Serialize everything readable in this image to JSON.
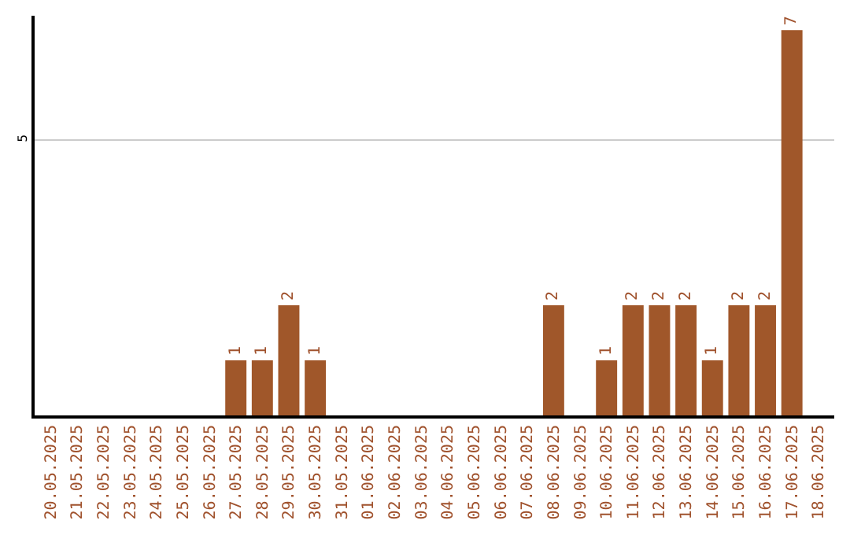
{
  "chart_data": {
    "type": "bar",
    "categories": [
      "20.05.2025",
      "21.05.2025",
      "22.05.2025",
      "23.05.2025",
      "24.05.2025",
      "25.05.2025",
      "26.05.2025",
      "27.05.2025",
      "28.05.2025",
      "29.05.2025",
      "30.05.2025",
      "31.05.2025",
      "01.06.2025",
      "02.06.2025",
      "03.06.2025",
      "04.06.2025",
      "05.06.2025",
      "06.06.2025",
      "07.06.2025",
      "08.06.2025",
      "09.06.2025",
      "10.06.2025",
      "11.06.2025",
      "12.06.2025",
      "13.06.2025",
      "14.06.2025",
      "15.06.2025",
      "16.06.2025",
      "17.06.2025",
      "18.06.2025"
    ],
    "values": [
      0,
      0,
      0,
      0,
      0,
      0,
      0,
      1,
      1,
      2,
      1,
      0,
      0,
      0,
      0,
      0,
      0,
      0,
      0,
      2,
      0,
      1,
      2,
      2,
      2,
      1,
      2,
      2,
      7,
      0
    ],
    "value_labels": [
      null,
      null,
      null,
      null,
      null,
      null,
      null,
      "1",
      "1",
      "2",
      "1",
      null,
      null,
      null,
      null,
      null,
      null,
      null,
      null,
      "2",
      null,
      "1",
      "2",
      "2",
      "2",
      "1",
      "2",
      "2",
      "7",
      null
    ],
    "color": "#a0572a",
    "ylim": [
      0,
      7.26
    ],
    "yticks": [
      5
    ],
    "grid": "y"
  }
}
